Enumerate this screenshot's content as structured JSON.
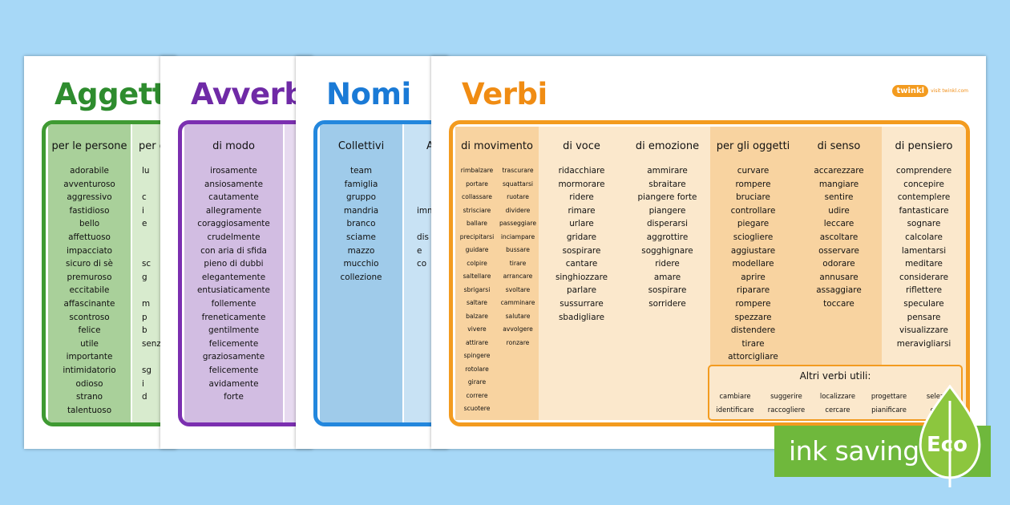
{
  "sheets": {
    "aggettivi": {
      "title": "Aggettivi",
      "col1": {
        "heading": "per le persone",
        "items": [
          "adorabile",
          "avventuroso",
          "aggressivo",
          "fastidioso",
          "bello",
          "affettuoso",
          "impacciato",
          "sicuro di sè",
          "premuroso",
          "eccitabile",
          "affascinante",
          "scontroso",
          "felice",
          "utile",
          "importante",
          "intimidatorio",
          "odioso",
          "strano",
          "talentuoso"
        ]
      },
      "col2": {
        "heading": "per g",
        "items": [
          "lu",
          "",
          "c",
          "i",
          "e",
          "",
          "",
          "sc",
          "g",
          "",
          "m",
          "p",
          "b",
          "senz",
          "",
          "sg",
          "i",
          "d",
          ""
        ]
      }
    },
    "avverbi": {
      "title": "Avverbi",
      "col1": {
        "heading": "di modo",
        "items": [
          "irosamente",
          "ansiosamente",
          "cautamente",
          "allegramente",
          "coraggiosamente",
          "crudelmente",
          "con aria di sfida",
          "pieno di dubbi",
          "elegantemente",
          "entusiaticamente",
          "follemente",
          "freneticamente",
          "gentilmente",
          "felicemente",
          "graziosamente",
          "felicemente",
          "avidamente",
          "forte"
        ]
      }
    },
    "nomi": {
      "title": "Nomi",
      "col1": {
        "heading": "Collettivi",
        "items": [
          "team",
          "famiglia",
          "gruppo",
          "mandria",
          "branco",
          "sciame",
          "mazzo",
          "mucchio",
          "collezione"
        ]
      },
      "col2": {
        "heading": "A",
        "items": [
          "",
          "",
          "",
          "imm",
          "",
          "dis",
          "e",
          "co",
          ""
        ]
      }
    },
    "verbi": {
      "title": "Verbi",
      "brand": "twinkl",
      "brand_url": "visit twinkl.com",
      "movimento": {
        "heading": "di movimento",
        "left": [
          "rimbalzare",
          "portare",
          "collassare",
          "strisciare",
          "ballare",
          "precipitarsi",
          "guidare",
          "colpire",
          "saltellare",
          "sbrigarsi",
          "saltare",
          "balzare",
          "vivere",
          "attirare",
          "spingere",
          "rotolare",
          "girare",
          "correre",
          "scuotere"
        ],
        "right": [
          "trascurare",
          "squattarsi",
          "ruotare",
          "dividere",
          "passeggiare",
          "inciampare",
          "bussare",
          "tirare",
          "arrancare",
          "svoltare",
          "camminare",
          "salutare",
          "avvolgere",
          "ronzare"
        ]
      },
      "voce": {
        "heading": "di voce",
        "items": [
          "ridacchiare",
          "mormorare",
          "ridere",
          "rimare",
          "urlare",
          "gridare",
          "sospirare",
          "cantare",
          "singhiozzare",
          "parlare",
          "sussurrare",
          "sbadigliare"
        ]
      },
      "emozione": {
        "heading": "di emozione",
        "items": [
          "ammirare",
          "sbraitare",
          "piangere forte",
          "piangere",
          "disperarsi",
          "aggrottire",
          "sogghignare",
          "ridere",
          "amare",
          "sospirare",
          "sorridere"
        ]
      },
      "oggetti": {
        "heading": "per gli oggetti",
        "items": [
          "curvare",
          "rompere",
          "bruciare",
          "controllare",
          "piegare",
          "sciogliere",
          "aggiustare",
          "modellare",
          "aprire",
          "riparare",
          "rompere",
          "spezzare",
          "distendere",
          "tirare",
          "attorcigliare"
        ]
      },
      "senso": {
        "heading": "di senso",
        "items": [
          "accarezzare",
          "mangiare",
          "sentire",
          "udire",
          "leccare",
          "ascoltare",
          "osservare",
          "odorare",
          "annusare",
          "assaggiare",
          "toccare"
        ]
      },
      "pensiero": {
        "heading": "di pensiero",
        "items": [
          "comprendere",
          "concepire",
          "contemplere",
          "fantasticare",
          "sognare",
          "calcolare",
          "lamentarsi",
          "meditare",
          "considerare",
          "riflettere",
          "speculare",
          "pensare",
          "visualizzare",
          "meravigliarsi"
        ]
      },
      "altri": {
        "title": "Altri verbi utili:",
        "cols": [
          [
            "cambiare",
            "identificare"
          ],
          [
            "suggerire",
            "raccogliere"
          ],
          [
            "localizzare",
            "cercare"
          ],
          [
            "progettare",
            "pianificare"
          ],
          [
            "selezion",
            "conce"
          ]
        ]
      }
    }
  },
  "eco_banner": {
    "text": "ink saving",
    "badge": "Eco"
  },
  "colors": {
    "background": "#a7d8f7",
    "green": "#3f9a32",
    "purple": "#7b2fb0",
    "blue": "#2387dd",
    "orange": "#f39b1f",
    "eco": "#6fb83c"
  }
}
